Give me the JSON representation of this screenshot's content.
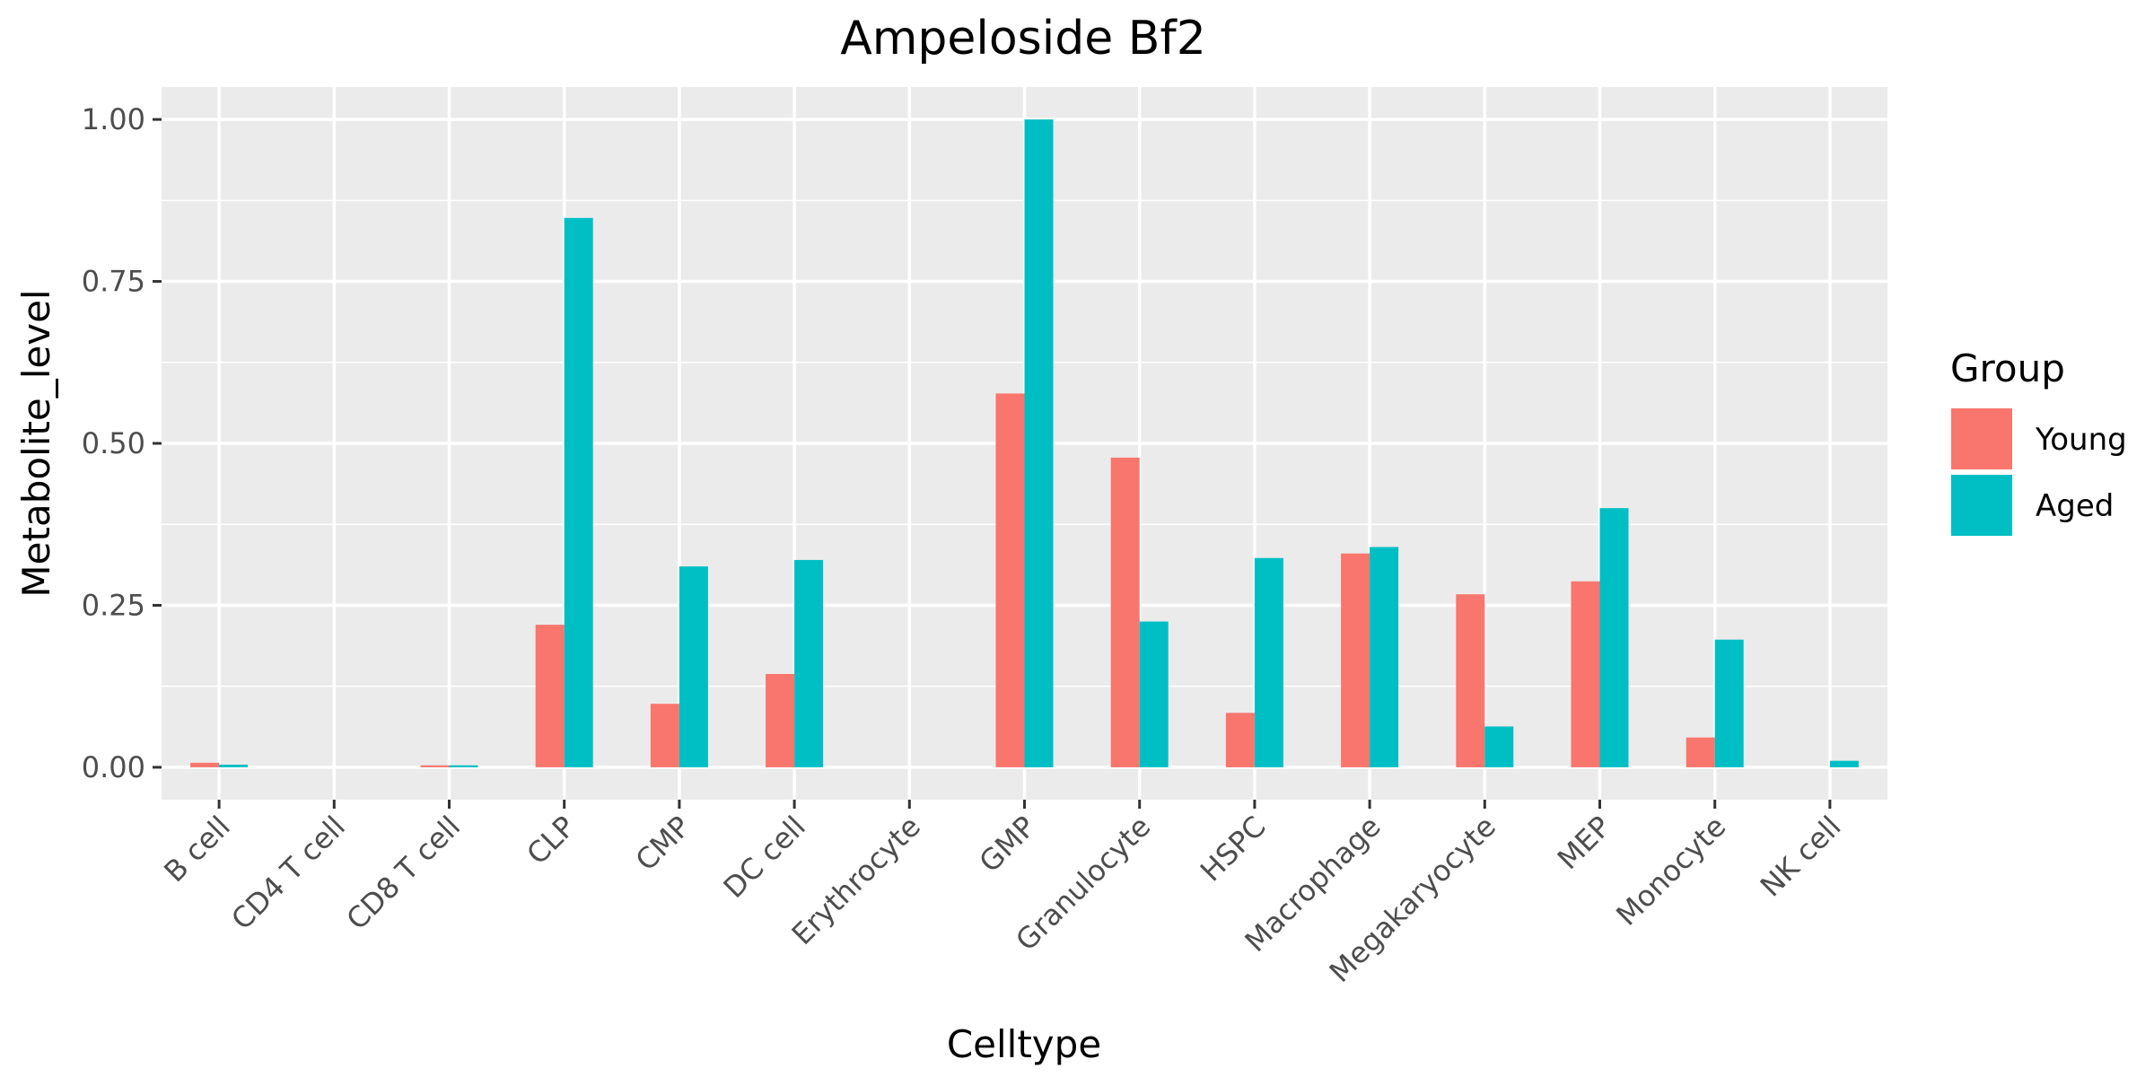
{
  "chart_data": {
    "type": "bar",
    "title": "Ampeloside Bf2",
    "xlabel": "Celltype",
    "ylabel": "Metabolite_level",
    "categories": [
      "B cell",
      "CD4 T cell",
      "CD8 T cell",
      "CLP",
      "CMP",
      "DC cell",
      "Erythrocyte",
      "GMP",
      "Granulocyte",
      "HSPC",
      "Macrophage",
      "Megakaryocyte",
      "MEP",
      "Monocyte",
      "NK cell"
    ],
    "series": [
      {
        "name": "Young",
        "color": "#F8766D",
        "values": [
          0.007,
          0.0,
          0.003,
          0.22,
          0.098,
          0.144,
          0.0,
          0.577,
          0.478,
          0.084,
          0.33,
          0.267,
          0.287,
          0.046,
          0.0
        ]
      },
      {
        "name": "Aged",
        "color": "#00BFC4",
        "values": [
          0.004,
          0.0,
          0.003,
          0.848,
          0.31,
          0.32,
          0.0,
          1.0,
          0.225,
          0.323,
          0.34,
          0.063,
          0.4,
          0.197,
          0.01
        ]
      }
    ],
    "ylim": [
      -0.05,
      1.05
    ],
    "yticks": [
      0.0,
      0.25,
      0.5,
      0.75,
      1.0
    ],
    "ytick_labels": [
      "0.00",
      "0.25",
      "0.50",
      "0.75",
      "1.00"
    ],
    "grid": true,
    "legend": {
      "title": "Group",
      "placement": "right"
    },
    "panel_background": "#EBEBEB"
  }
}
